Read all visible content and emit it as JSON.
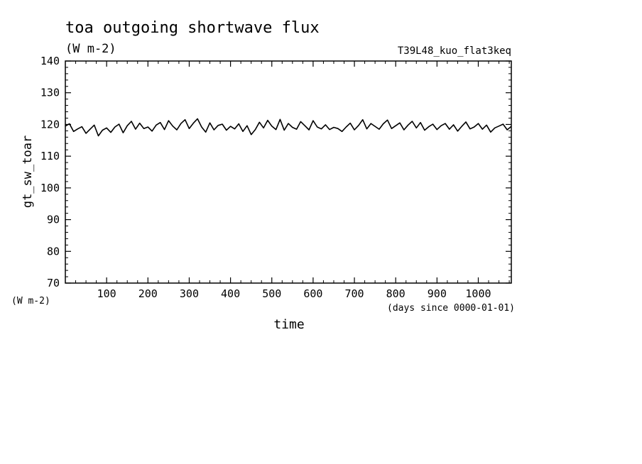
{
  "chart_data": {
    "type": "line",
    "title": "toa outgoing shortwave flux",
    "subtitle": "(W m-2)",
    "run_label": "T39L48_kuo_flat3keq",
    "xlabel": "time",
    "xunit": "(days since 0000-01-01)",
    "ylabel": "gt_sw_toar",
    "yunit": "(W m-2)",
    "xlim": [
      0,
      1080
    ],
    "ylim": [
      70,
      140
    ],
    "xticks": [
      100,
      200,
      300,
      400,
      500,
      600,
      700,
      800,
      900,
      1000
    ],
    "xtick_labels": [
      "100",
      "200",
      "300",
      "400",
      "500",
      "600",
      "700",
      "800",
      "900",
      "1000"
    ],
    "yticks": [
      70,
      80,
      90,
      100,
      110,
      120,
      130,
      140
    ],
    "ytick_labels": [
      "70",
      "80",
      "90",
      "100",
      "110",
      "120",
      "130",
      "140"
    ],
    "grid": false,
    "legend": "none",
    "series": [
      {
        "color": "#000000",
        "x": [
          0,
          10,
          20,
          30,
          40,
          50,
          60,
          70,
          80,
          90,
          100,
          110,
          120,
          130,
          140,
          150,
          160,
          170,
          180,
          190,
          200,
          210,
          220,
          230,
          240,
          250,
          260,
          270,
          280,
          290,
          300,
          310,
          320,
          330,
          340,
          350,
          360,
          370,
          380,
          390,
          400,
          410,
          420,
          430,
          440,
          450,
          460,
          470,
          480,
          490,
          500,
          510,
          520,
          530,
          540,
          550,
          560,
          570,
          580,
          590,
          600,
          610,
          620,
          630,
          640,
          650,
          660,
          670,
          680,
          690,
          700,
          710,
          720,
          730,
          740,
          750,
          760,
          770,
          780,
          790,
          800,
          810,
          820,
          830,
          840,
          850,
          860,
          870,
          880,
          890,
          900,
          910,
          920,
          930,
          940,
          950,
          960,
          970,
          980,
          990,
          1000,
          1010,
          1020,
          1030,
          1040,
          1050,
          1060,
          1070,
          1080
        ],
        "values": [
          119.5,
          120.2,
          117.8,
          118.6,
          119.3,
          117.2,
          118.5,
          119.8,
          116.4,
          118.2,
          118.9,
          117.5,
          119.2,
          120.1,
          117.4,
          119.6,
          121.0,
          118.5,
          120.4,
          118.7,
          119.2,
          117.9,
          119.8,
          120.6,
          118.4,
          121.2,
          119.5,
          118.3,
          120.3,
          121.5,
          118.7,
          120.4,
          121.8,
          119.2,
          117.6,
          120.5,
          118.3,
          119.7,
          120.1,
          118.2,
          119.4,
          118.6,
          120.2,
          117.8,
          119.6,
          116.8,
          118.4,
          120.7,
          118.9,
          121.3,
          119.5,
          118.4,
          121.6,
          118.2,
          120.3,
          119.1,
          118.5,
          120.9,
          119.6,
          118.3,
          121.2,
          119.2,
          118.6,
          119.9,
          118.4,
          119.1,
          118.7,
          117.8,
          119.2,
          120.4,
          118.3,
          119.7,
          121.5,
          118.6,
          120.3,
          119.4,
          118.5,
          120.2,
          121.4,
          118.7,
          119.6,
          120.5,
          118.3,
          119.8,
          121.0,
          118.9,
          120.6,
          118.2,
          119.3,
          120.1,
          118.4,
          119.6,
          120.3,
          118.5,
          119.9,
          117.9,
          119.4,
          120.8,
          118.6,
          119.2,
          120.3,
          118.5,
          119.8,
          117.6,
          118.9,
          119.5,
          120.1,
          118.3,
          119.4
        ]
      }
    ]
  }
}
